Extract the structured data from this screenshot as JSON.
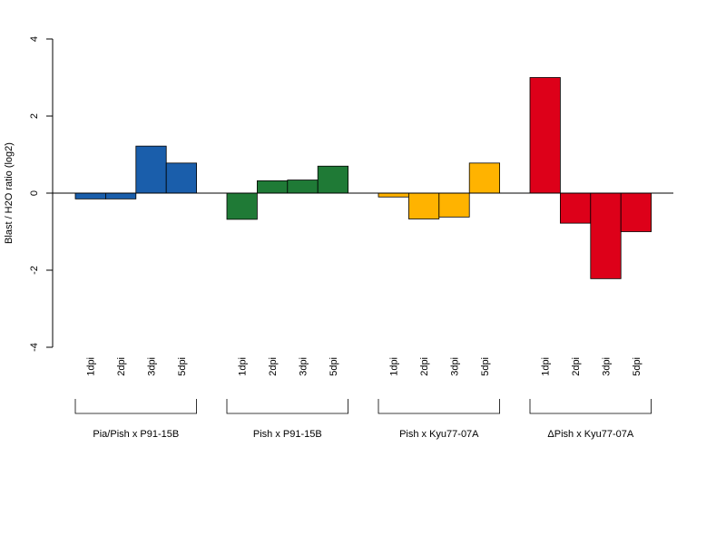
{
  "chart_data": {
    "type": "bar",
    "title": "",
    "xlabel": "",
    "ylabel": "Blast / H2O ratio (log2)",
    "ylim": [
      -4,
      4
    ],
    "yticks": [
      -4,
      -2,
      0,
      2,
      4
    ],
    "grid": false,
    "legend": "none",
    "categories": [
      "1dpi",
      "2dpi",
      "3dpi",
      "5dpi"
    ],
    "series": [
      {
        "name": "Pia/Pish x P91-15B",
        "color": "#1A5EAB",
        "values": [
          -0.15,
          -0.15,
          1.22,
          0.78
        ]
      },
      {
        "name": "Pish x P91-15B",
        "color": "#1F7A36",
        "values": [
          -0.68,
          0.32,
          0.34,
          0.7
        ]
      },
      {
        "name": "Pish x Kyu77-07A",
        "color": "#FFB300",
        "values": [
          -0.1,
          -0.67,
          -0.62,
          0.78
        ]
      },
      {
        "name": "ΔPish x Kyu77-07A",
        "color": "#DD0019",
        "values": [
          3.0,
          -0.78,
          -2.22,
          -1.0
        ]
      }
    ]
  }
}
